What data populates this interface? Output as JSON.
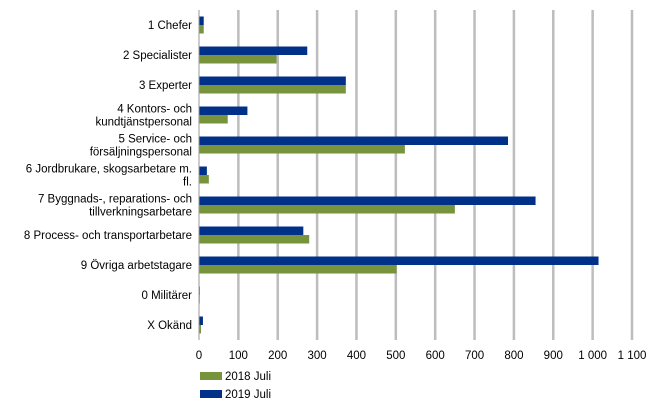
{
  "chart_data": {
    "type": "bar",
    "orientation": "horizontal",
    "categories": [
      [
        "1 Chefer"
      ],
      [
        "2 Specialister"
      ],
      [
        "3 Experter"
      ],
      [
        "4 Kontors- och",
        "kundtjänstpersonal"
      ],
      [
        "5 Service- och",
        "försäljningspersonal"
      ],
      [
        "6 Jordbrukare, skogsarbetare m.",
        "fl."
      ],
      [
        "7 Byggnads-, reparations- och",
        "tillverkningsarbetare"
      ],
      [
        "8 Process- och transportarbetare"
      ],
      [
        "9 Övriga arbetstagare"
      ],
      [
        "0 Militärer"
      ],
      [
        "X Okänd"
      ]
    ],
    "series": [
      {
        "name": "2019 Juli",
        "color": "#003087",
        "values": [
          12,
          275,
          373,
          123,
          785,
          20,
          855,
          265,
          1015,
          2,
          10
        ]
      },
      {
        "name": "2018 Juli",
        "color": "#77933c",
        "values": [
          12,
          197,
          373,
          73,
          523,
          25,
          650,
          280,
          502,
          1,
          5
        ]
      }
    ],
    "xlim": [
      0,
      1100
    ],
    "xticks": [
      0,
      100,
      200,
      300,
      400,
      500,
      600,
      700,
      800,
      900,
      1000,
      1100
    ],
    "xtick_labels": [
      "0",
      "100",
      "200",
      "300",
      "400",
      "500",
      "600",
      "700",
      "800",
      "900",
      "1 000",
      "1 100"
    ],
    "grid": "vertical",
    "legend_position": "bottom-left",
    "legend": [
      "2018 Juli",
      "2019 Juli"
    ]
  }
}
